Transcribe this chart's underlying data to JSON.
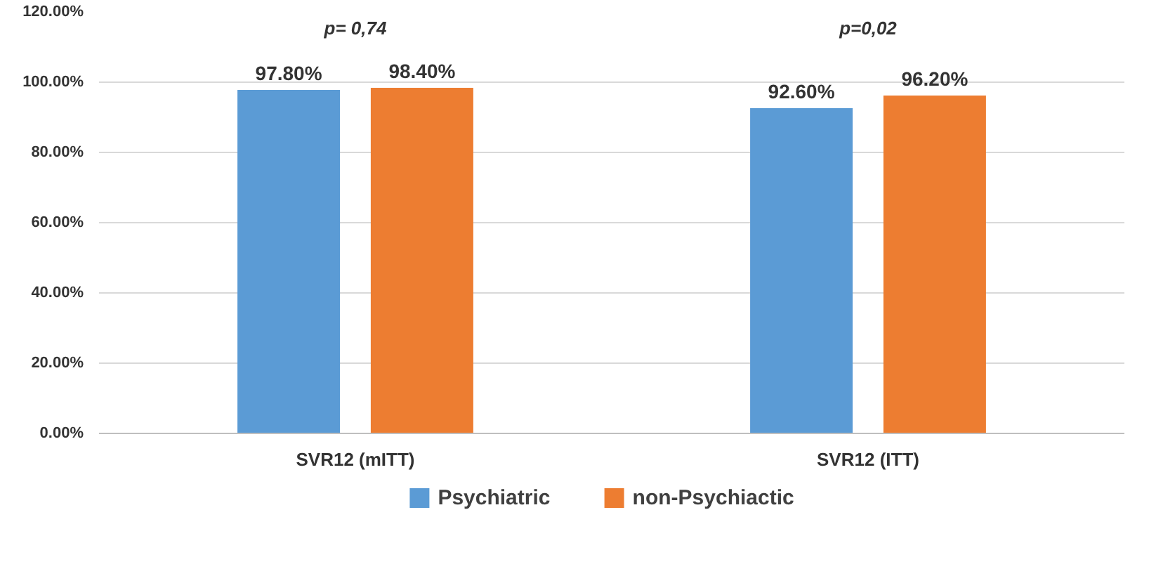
{
  "chart_data": {
    "type": "bar",
    "categories": [
      "SVR12 (mITT)",
      "SVR12 (ITT)"
    ],
    "series": [
      {
        "name": "Psychiatric",
        "color": "#5b9bd5",
        "values": [
          97.8,
          92.6
        ],
        "value_labels": [
          "97.80%",
          "92.60%"
        ]
      },
      {
        "name": "non-Psychiactic",
        "color": "#ed7d31",
        "values": [
          98.4,
          96.2
        ],
        "value_labels": [
          "98.40%",
          "96.20%"
        ]
      }
    ],
    "ylim": [
      0,
      120
    ],
    "yticks": [
      {
        "value": 0,
        "label": "0.00%"
      },
      {
        "value": 20,
        "label": "20.00%"
      },
      {
        "value": 40,
        "label": "40.00%"
      },
      {
        "value": 60,
        "label": "60.00%"
      },
      {
        "value": 80,
        "label": "80.00%"
      },
      {
        "value": 100,
        "label": "100.00%"
      },
      {
        "value": 120,
        "label": "120.00%"
      }
    ],
    "annotations": [
      "p= 0,74",
      "p=0,02"
    ],
    "grid": "y",
    "legend": "bottom"
  }
}
